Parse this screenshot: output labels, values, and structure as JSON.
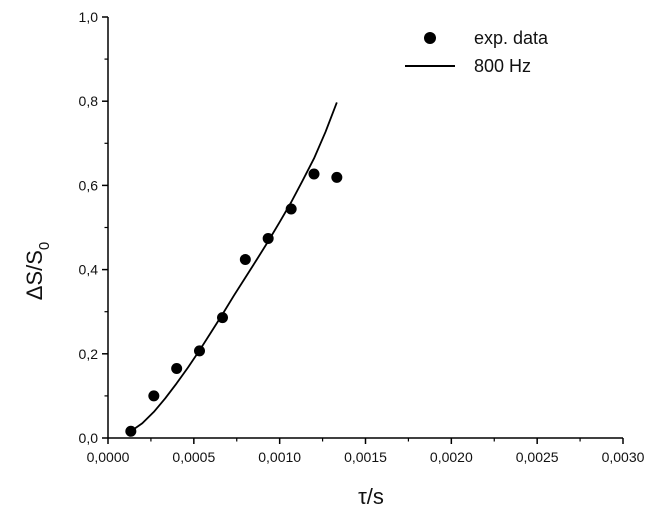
{
  "chart_data": {
    "type": "scatter",
    "xlabel": "τ/s",
    "ylabel_main": "ΔS/S",
    "ylabel_sub": "0",
    "xlim": [
      0,
      0.003
    ],
    "ylim": [
      0,
      1.0
    ],
    "x_ticks": [
      0,
      0.0005,
      0.001,
      0.0015,
      0.002,
      0.0025,
      0.003
    ],
    "x_tick_labels": [
      "0,0000",
      "0,0005",
      "0,0010",
      "0,0015",
      "0,0020",
      "0,0025",
      "0,0030"
    ],
    "y_ticks": [
      0,
      0.2,
      0.4,
      0.6,
      0.8,
      1.0
    ],
    "y_tick_labels": [
      "0,0",
      "0,2",
      "0,4",
      "0,6",
      "0,8",
      "1,0"
    ],
    "grid": false,
    "legend_position": "top-right",
    "series": [
      {
        "name": "exp. data",
        "kind": "scatter",
        "color": "#000000",
        "x": [
          0.000133,
          0.000267,
          0.0004,
          0.000533,
          0.000667,
          0.0008,
          0.000933,
          0.001067,
          0.0012,
          0.001333
        ],
        "y": [
          0.016,
          0.1,
          0.165,
          0.207,
          0.286,
          0.424,
          0.474,
          0.544,
          0.627,
          0.619
        ]
      },
      {
        "name": "800 Hz",
        "kind": "line",
        "color": "#000000",
        "x": [
          0.000133,
          0.0002,
          0.000267,
          0.000333,
          0.0004,
          0.000467,
          0.000533,
          0.0006,
          0.000667,
          0.000733,
          0.0008,
          0.000867,
          0.000933,
          0.001,
          0.001067,
          0.001133,
          0.0012,
          0.001267,
          0.001333
        ],
        "y": [
          0.016,
          0.035,
          0.062,
          0.094,
          0.13,
          0.168,
          0.208,
          0.251,
          0.294,
          0.338,
          0.381,
          0.424,
          0.467,
          0.513,
          0.56,
          0.611,
          0.664,
          0.727,
          0.797
        ]
      }
    ]
  }
}
